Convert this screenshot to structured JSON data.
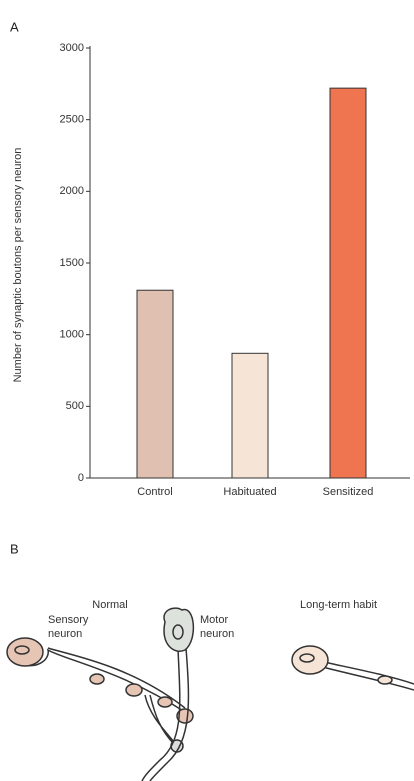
{
  "chart_data": {
    "type": "bar",
    "panel_label": "A",
    "y_label": "Number of synaptic boutons per sensory neuron",
    "categories": [
      "Control",
      "Habituated",
      "Sensitized"
    ],
    "values": [
      1310,
      870,
      2720
    ],
    "colors": [
      "#dfc0b1",
      "#f6e5d7",
      "#ef7550"
    ],
    "ylim": [
      0,
      3000
    ],
    "yticks": [
      0,
      500,
      1000,
      1500,
      2000,
      2500,
      3000
    ]
  },
  "diagram": {
    "panel_label": "B",
    "panels": [
      {
        "title": "Normal"
      },
      {
        "title": "Long-term habit"
      }
    ],
    "labels": [
      {
        "lines": [
          "Sensory",
          "neuron"
        ]
      },
      {
        "lines": [
          "Motor",
          "neuron"
        ]
      }
    ]
  }
}
